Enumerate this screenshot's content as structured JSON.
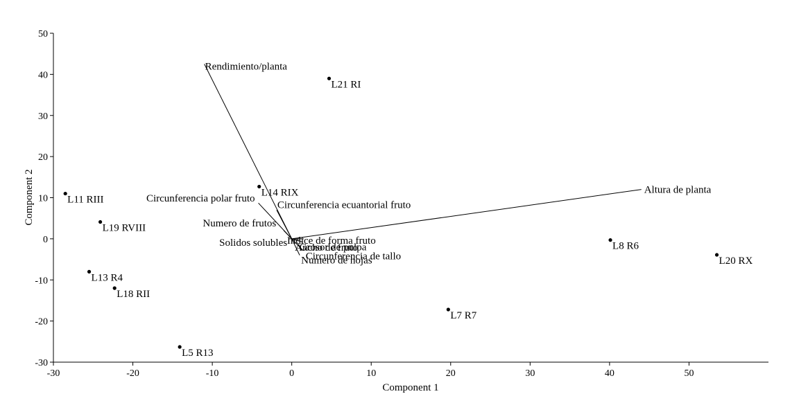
{
  "chart_data": {
    "type": "scatter",
    "title": "",
    "xlabel": "Component 1",
    "ylabel": "Component 2",
    "xlim": [
      -30,
      60
    ],
    "ylim": [
      -30,
      50
    ],
    "xticks": [
      -30,
      -20,
      -10,
      0,
      10,
      20,
      30,
      40,
      50
    ],
    "yticks": [
      -30,
      -20,
      -10,
      0,
      10,
      20,
      30,
      40,
      50
    ],
    "grid": false,
    "points": [
      {
        "label": "L21 RI",
        "x": 4.7,
        "y": 39.0
      },
      {
        "label": "L14 RIX",
        "x": -4.1,
        "y": 12.7
      },
      {
        "label": "L11 RIII",
        "x": -28.5,
        "y": 11.0
      },
      {
        "label": "L19 RVIII",
        "x": -24.1,
        "y": 4.1
      },
      {
        "label": "L13 R4",
        "x": -25.5,
        "y": -8.0
      },
      {
        "label": "L18 RII",
        "x": -22.3,
        "y": -12.0
      },
      {
        "label": "L5 R13",
        "x": -14.1,
        "y": -26.3
      },
      {
        "label": "L7 R7",
        "x": 19.7,
        "y": -17.2
      },
      {
        "label": "L8 R6",
        "x": 40.1,
        "y": -0.3
      },
      {
        "label": "L20 RX",
        "x": 53.5,
        "y": -3.9
      }
    ],
    "loadings": [
      {
        "label": "Rendimiento/planta",
        "x": -11.0,
        "y": 42.5
      },
      {
        "label": "Altura de planta",
        "x": 44.0,
        "y": 12.0
      },
      {
        "label": "Circunferencia polar fruto",
        "x": -4.2,
        "y": 8.7
      },
      {
        "label": "Circunferencia ecuantorial fruto",
        "x": -1.9,
        "y": 7.0
      },
      {
        "label": "Numero de frutos",
        "x": -1.0,
        "y": 2.0
      },
      {
        "label": "Solidos solubles",
        "x": -0.4,
        "y": 0.0
      },
      {
        "label": "Indice de forma fruto",
        "x": 1.5,
        "y": 0.0
      },
      {
        "label": "Ancho de fruto",
        "x": 1.0,
        "y": -0.5
      },
      {
        "label": "Grosor de pulpa",
        "x": 1.4,
        "y": -0.8
      },
      {
        "label": "Circunferencia de tallo",
        "x": 1.4,
        "y": -2.8
      },
      {
        "label": "Numero de hojas",
        "x": 1.0,
        "y": -4.0
      }
    ]
  }
}
